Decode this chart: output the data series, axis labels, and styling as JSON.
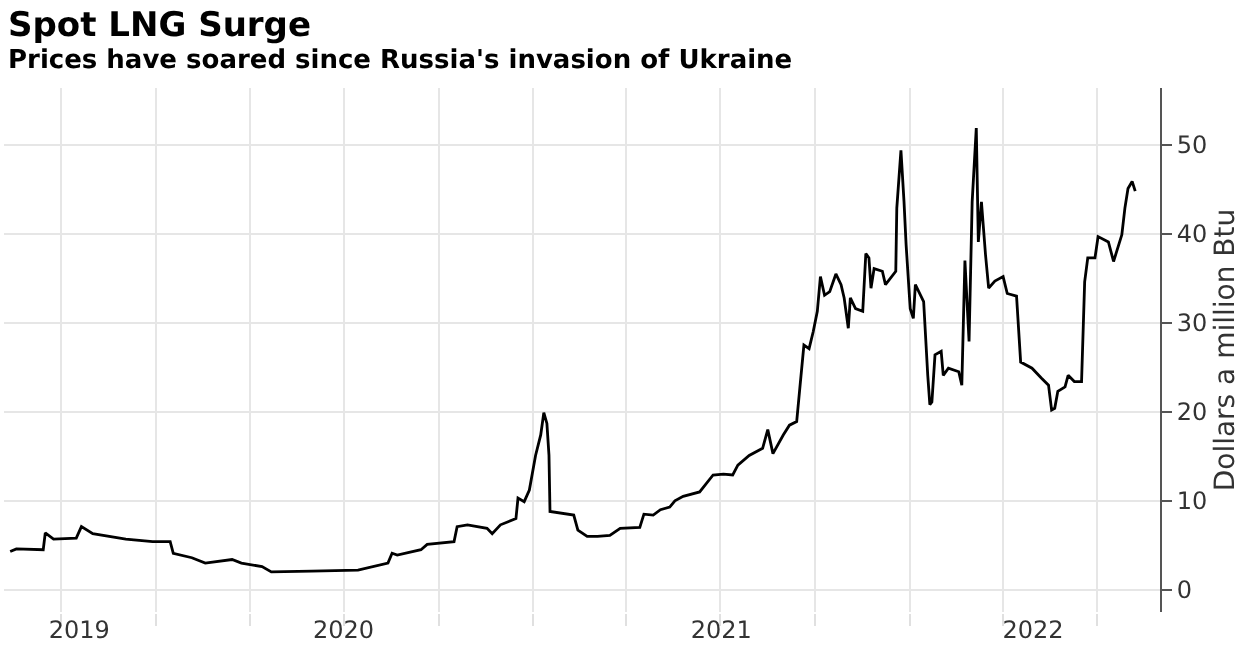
{
  "chart_data": {
    "type": "line",
    "title": "Spot LNG Surge",
    "subtitle": "Prices have soared since Russia's invasion of Ukraine",
    "ylabel": "Dollars a million Btu",
    "x": [
      "2019-08-13",
      "2019-08-19",
      "2019-09-14",
      "2019-09-16",
      "2019-09-24",
      "2019-10-16",
      "2019-10-21",
      "2019-11-01",
      "2019-12-03",
      "2019-12-29",
      "2020-01-15",
      "2020-01-18",
      "2020-02-05",
      "2020-02-18",
      "2020-03-15",
      "2020-03-24",
      "2020-04-13",
      "2020-04-22",
      "2020-05-31",
      "2020-07-15",
      "2020-08-13",
      "2020-08-17",
      "2020-08-22",
      "2020-09-14",
      "2020-09-20",
      "2020-10-16",
      "2020-10-19",
      "2020-10-29",
      "2020-11-17",
      "2020-11-22",
      "2020-11-30",
      "2020-12-15",
      "2020-12-17",
      "2020-12-23",
      "2020-12-28",
      "2021-01-03",
      "2021-01-08",
      "2021-01-11",
      "2021-01-14",
      "2021-01-16",
      "2021-01-17",
      "2021-02-09",
      "2021-02-13",
      "2021-02-22",
      "2021-03-04",
      "2021-03-16",
      "2021-03-26",
      "2021-04-14",
      "2021-04-18",
      "2021-04-27",
      "2021-05-04",
      "2021-05-13",
      "2021-05-18",
      "2021-05-26",
      "2021-06-11",
      "2021-06-24",
      "2021-07-04",
      "2021-07-13",
      "2021-07-18",
      "2021-07-29",
      "2021-08-11",
      "2021-08-16",
      "2021-08-21",
      "2021-08-31",
      "2021-09-06",
      "2021-09-13",
      "2021-09-16",
      "2021-09-20",
      "2021-09-25",
      "2021-09-29",
      "2021-10-03",
      "2021-10-06",
      "2021-10-10",
      "2021-10-15",
      "2021-10-21",
      "2021-10-26",
      "2021-10-29",
      "2021-11-02",
      "2021-11-04",
      "2021-11-09",
      "2021-11-16",
      "2021-11-19",
      "2021-11-22",
      "2021-11-24",
      "2021-11-27",
      "2021-12-05",
      "2021-12-08",
      "2021-12-18",
      "2021-12-19",
      "2021-12-23",
      "2021-12-26",
      "2021-12-28",
      "2022-01-01",
      "2022-01-04",
      "2022-01-06",
      "2022-01-14",
      "2022-01-18",
      "2022-01-20",
      "2022-01-22",
      "2022-01-25",
      "2022-01-31",
      "2022-02-02",
      "2022-02-07",
      "2022-02-17",
      "2022-02-20",
      "2022-02-23",
      "2022-02-27",
      "2022-03-02",
      "2022-03-06",
      "2022-03-08",
      "2022-03-11",
      "2022-03-15",
      "2022-03-18",
      "2022-03-24",
      "2022-04-01",
      "2022-04-05",
      "2022-04-14",
      "2022-04-18",
      "2022-04-29",
      "2022-05-08",
      "2022-05-15",
      "2022-05-18",
      "2022-05-21",
      "2022-05-24",
      "2022-05-31",
      "2022-06-03",
      "2022-06-09",
      "2022-06-16",
      "2022-06-19",
      "2022-06-22",
      "2022-06-29",
      "2022-07-02",
      "2022-07-12",
      "2022-07-17",
      "2022-07-25",
      "2022-07-28",
      "2022-07-31",
      "2022-08-04",
      "2022-08-07"
    ],
    "values": [
      4.3,
      4.6,
      4.5,
      6.4,
      5.7,
      5.8,
      7.1,
      6.3,
      5.7,
      5.4,
      5.4,
      4.1,
      3.6,
      3.0,
      3.4,
      3.0,
      2.6,
      2.0,
      2.1,
      2.2,
      3.0,
      4.1,
      3.9,
      4.5,
      5.1,
      5.4,
      7.1,
      7.3,
      6.9,
      6.3,
      7.3,
      8.0,
      10.3,
      9.9,
      11.2,
      15.1,
      17.4,
      19.9,
      18.7,
      15.1,
      8.8,
      8.4,
      6.7,
      6.0,
      6.0,
      6.1,
      6.9,
      7.0,
      8.5,
      8.4,
      9.0,
      9.3,
      10.0,
      10.5,
      11.0,
      12.9,
      13.0,
      12.9,
      14.0,
      15.1,
      15.9,
      18.0,
      15.3,
      17.4,
      18.5,
      18.9,
      22.6,
      27.5,
      27.1,
      29.0,
      31.3,
      35.2,
      33.1,
      33.5,
      35.5,
      34.3,
      32.8,
      29.4,
      32.8,
      31.6,
      31.3,
      37.8,
      37.3,
      33.9,
      36.1,
      35.8,
      34.3,
      35.8,
      42.9,
      49.4,
      43.6,
      38.8,
      31.6,
      30.5,
      34.3,
      32.4,
      24.1,
      20.8,
      21.1,
      26.4,
      26.8,
      24.1,
      24.9,
      24.5,
      23.0,
      37.0,
      27.9,
      43.6,
      51.9,
      39.1,
      43.6,
      37.6,
      33.9,
      34.7,
      35.2,
      33.3,
      33.0,
      25.6,
      24.9,
      23.8,
      23.0,
      20.2,
      20.4,
      22.3,
      22.8,
      24.1,
      23.4,
      23.4,
      34.6,
      37.3,
      37.3,
      39.7,
      39.1,
      36.9,
      39.9,
      42.9,
      45.1,
      45.9,
      44.8
    ],
    "color": "#000000",
    "xlim": [
      "2019-08-07",
      "2022-08-31"
    ],
    "xticks": [
      {
        "value": "2019-10-01",
        "label": null
      },
      {
        "value": "2020-01-01",
        "label": null
      },
      {
        "value": "2020-04-01",
        "label": null
      },
      {
        "value": "2020-07-01",
        "label": null
      },
      {
        "value": "2020-10-01",
        "label": null
      },
      {
        "value": "2021-01-01",
        "label": null
      },
      {
        "value": "2021-04-01",
        "label": null
      },
      {
        "value": "2021-07-01",
        "label": null
      },
      {
        "value": "2021-10-01",
        "label": null
      },
      {
        "value": "2022-01-01",
        "label": null
      },
      {
        "value": "2022-04-01",
        "label": null
      },
      {
        "value": "2022-07-01",
        "label": null
      },
      {
        "value": "2019-10-19",
        "label": "2019"
      },
      {
        "value": "2020-07-01",
        "label": "2020"
      },
      {
        "value": "2021-07-02",
        "label": "2021"
      },
      {
        "value": "2022-04-30",
        "label": "2022"
      }
    ],
    "ylim": [
      -2.5,
      56.4
    ],
    "yticks": [
      0,
      10,
      20,
      30,
      40,
      50
    ],
    "grid": true,
    "legend": false
  }
}
